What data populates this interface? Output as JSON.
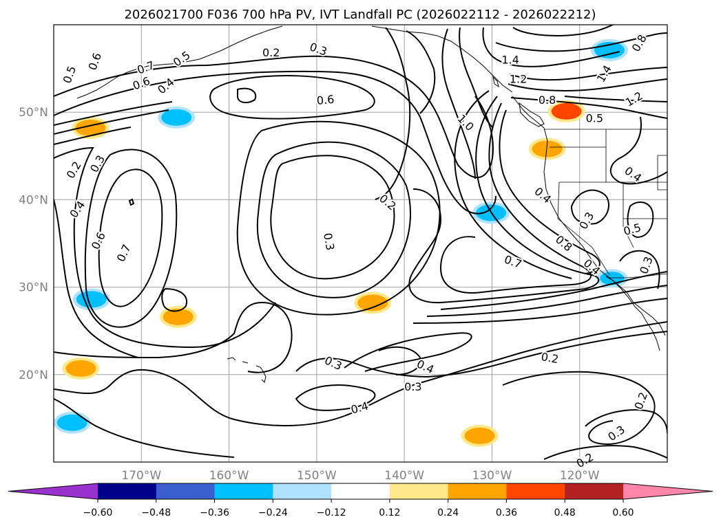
{
  "chart_data": {
    "type": "contour map",
    "title": "2026021700 F036 700 hPa PV, IVT Landfall PC (2026022112 - 2026022212)",
    "lon_range": [
      -180,
      -110
    ],
    "lat_range": [
      10,
      60
    ],
    "x_ticks": [
      {
        "value": -170,
        "label": "170°W"
      },
      {
        "value": -160,
        "label": "160°W"
      },
      {
        "value": -150,
        "label": "150°W"
      },
      {
        "value": -140,
        "label": "140°W"
      },
      {
        "value": -130,
        "label": "130°W"
      },
      {
        "value": -120,
        "label": "120°W"
      }
    ],
    "y_ticks": [
      {
        "value": 20,
        "label": "20°N"
      },
      {
        "value": 30,
        "label": "30°N"
      },
      {
        "value": 40,
        "label": "40°N"
      },
      {
        "value": 50,
        "label": "50°N"
      }
    ],
    "grid": true,
    "colorbar": {
      "orientation": "horizontal",
      "extend": "both",
      "boundaries": [
        -0.6,
        -0.48,
        -0.36,
        -0.24,
        -0.12,
        0.12,
        0.24,
        0.36,
        0.48,
        0.6
      ],
      "tick_labels": [
        "−0.60",
        "−0.48",
        "−0.36",
        "−0.24",
        "−0.12",
        "0.12",
        "0.24",
        "0.36",
        "0.48",
        "0.60"
      ],
      "colors": [
        "#9932cc",
        "#00008b",
        "#3a5fcd",
        "#00bfff",
        "#b0e2ff",
        "#ffffff",
        "#ffe88a",
        "#ffa500",
        "#ff4500",
        "#b22222",
        "#ff85aa"
      ]
    },
    "contour_labels": [
      {
        "text": "0.5",
        "lon": -178.2,
        "lat": 54.3,
        "rot": -70
      },
      {
        "text": "0.6",
        "lon": -175.3,
        "lat": 55.8,
        "rot": -70
      },
      {
        "text": "0.7",
        "lon": -169.5,
        "lat": 55.1,
        "rot": -20
      },
      {
        "text": "0.5",
        "lon": -165.4,
        "lat": 56.1,
        "rot": -35
      },
      {
        "text": "0.6",
        "lon": -170.0,
        "lat": 53.3,
        "rot": -20
      },
      {
        "text": "0.4",
        "lon": -167.2,
        "lat": 53.0,
        "rot": -40
      },
      {
        "text": "0.2",
        "lon": -155.2,
        "lat": 56.8,
        "rot": 0
      },
      {
        "text": "0.3",
        "lon": -149.8,
        "lat": 57.2,
        "rot": 20
      },
      {
        "text": "0.6",
        "lon": -149.0,
        "lat": 51.4,
        "rot": -5
      },
      {
        "text": "1.4",
        "lon": -127.9,
        "lat": 56.0,
        "rot": 0
      },
      {
        "text": "1.2",
        "lon": -127.0,
        "lat": 53.8,
        "rot": 0
      },
      {
        "text": "0.8",
        "lon": -113.2,
        "lat": 57.9,
        "rot": -60
      },
      {
        "text": "1.4",
        "lon": -117.2,
        "lat": 54.4,
        "rot": -60
      },
      {
        "text": "1.2",
        "lon": -113.8,
        "lat": 51.5,
        "rot": -30
      },
      {
        "text": "0.8",
        "lon": -123.7,
        "lat": 51.4,
        "rot": 0
      },
      {
        "text": "0.5",
        "lon": -118.3,
        "lat": 49.3,
        "rot": 0
      },
      {
        "text": "1.0",
        "lon": -133.0,
        "lat": 48.8,
        "rot": 45
      },
      {
        "text": "0.2",
        "lon": -177.7,
        "lat": 43.4,
        "rot": -60
      },
      {
        "text": "0.3",
        "lon": -175.0,
        "lat": 44.1,
        "rot": -60
      },
      {
        "text": "0.4",
        "lon": -177.3,
        "lat": 38.9,
        "rot": -55
      },
      {
        "text": "0.6",
        "lon": -174.9,
        "lat": 35.3,
        "rot": -65
      },
      {
        "text": "0.7",
        "lon": -172.0,
        "lat": 33.9,
        "rot": -65
      },
      {
        "text": "0.2",
        "lon": -141.9,
        "lat": 39.7,
        "rot": 40
      },
      {
        "text": "0.3",
        "lon": -148.6,
        "lat": 35.2,
        "rot": 80
      },
      {
        "text": "0.4",
        "lon": -124.2,
        "lat": 40.5,
        "rot": 40
      },
      {
        "text": "0.3",
        "lon": -119.2,
        "lat": 37.6,
        "rot": -60
      },
      {
        "text": "0.4",
        "lon": -113.9,
        "lat": 42.9,
        "rot": 35
      },
      {
        "text": "0.5",
        "lon": -114.0,
        "lat": 36.6,
        "rot": -15
      },
      {
        "text": "0.8",
        "lon": -121.8,
        "lat": 35.0,
        "rot": 40
      },
      {
        "text": "0.7",
        "lon": -127.6,
        "lat": 32.9,
        "rot": 20
      },
      {
        "text": "0.4",
        "lon": -118.6,
        "lat": 32.3,
        "rot": 40
      },
      {
        "text": "0.3",
        "lon": -112.4,
        "lat": 32.5,
        "rot": -70
      },
      {
        "text": "0.3",
        "lon": -148.1,
        "lat": 21.3,
        "rot": 25
      },
      {
        "text": "0.4",
        "lon": -137.6,
        "lat": 20.9,
        "rot": 25
      },
      {
        "text": "0.3",
        "lon": -139.0,
        "lat": 18.6,
        "rot": 0
      },
      {
        "text": "0.4",
        "lon": -145.1,
        "lat": 16.2,
        "rot": -15
      },
      {
        "text": "0.2",
        "lon": -123.4,
        "lat": 21.9,
        "rot": 10
      },
      {
        "text": "0.2",
        "lon": -113.0,
        "lat": 17.0,
        "rot": -70
      },
      {
        "text": "0.3",
        "lon": -115.8,
        "lat": 13.3,
        "rot": -35
      },
      {
        "text": "0.2",
        "lon": -119.4,
        "lat": 10.2,
        "rot": -30
      }
    ],
    "anomaly_patches": [
      {
        "lon": -175.8,
        "lat": 48.2,
        "value": 0.3
      },
      {
        "lon": -166.0,
        "lat": 49.4,
        "value": -0.3
      },
      {
        "lon": -123.7,
        "lat": 45.8,
        "value": 0.3
      },
      {
        "lon": -121.5,
        "lat": 50.1,
        "value": 0.4
      },
      {
        "lon": -143.6,
        "lat": 28.2,
        "value": 0.3
      },
      {
        "lon": -165.8,
        "lat": 26.6,
        "value": 0.3
      },
      {
        "lon": -175.7,
        "lat": 28.6,
        "value": -0.3
      },
      {
        "lon": -176.9,
        "lat": 20.7,
        "value": 0.3
      },
      {
        "lon": -116.3,
        "lat": 31.0,
        "value": -0.28
      },
      {
        "lon": -131.4,
        "lat": 13.0,
        "value": 0.3
      },
      {
        "lon": -130.1,
        "lat": 38.5,
        "value": -0.3
      },
      {
        "lon": -116.6,
        "lat": 57.1,
        "value": -0.3
      },
      {
        "lon": -177.9,
        "lat": 14.5,
        "value": -0.3
      }
    ]
  }
}
